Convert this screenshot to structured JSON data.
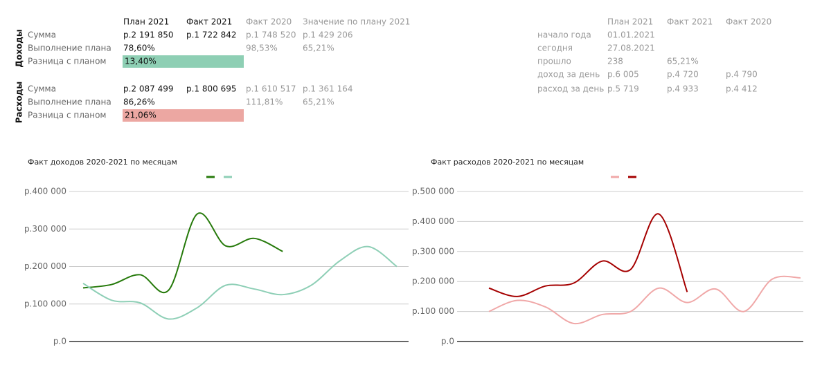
{
  "summary_table": {
    "header": [
      "План 2021",
      "Факт 2021",
      "Факт 2020",
      "Значение по плану 2021"
    ],
    "groups": [
      {
        "title": "Доходы",
        "highlight": "#8ecfb4",
        "rows": [
          {
            "label": "Сумма",
            "cells": [
              "р.2 191 850",
              "р.1 722 842",
              "р.1 748 520",
              "р.1 429 206"
            ]
          },
          {
            "label": "Выполнение плана",
            "cells": [
              "78,60%",
              null,
              "98,53%",
              "65,21%"
            ]
          },
          {
            "label": "Разница с планом",
            "cells": [
              "13,40%"
            ],
            "highlighted": true
          }
        ]
      },
      {
        "title": "Расходы",
        "highlight": "#eca7a2",
        "rows": [
          {
            "label": "Сумма",
            "cells": [
              "р.2 087 499",
              "р.1 800 695",
              "р.1 610 517",
              "р.1 361 164"
            ]
          },
          {
            "label": "Выполнение плана",
            "cells": [
              "86,26%",
              null,
              "111,81%",
              "65,21%"
            ]
          },
          {
            "label": "Разница с планом",
            "cells": [
              "21,06%"
            ],
            "highlighted": true
          }
        ]
      }
    ]
  },
  "period_table": {
    "header": [
      "План 2021",
      "Факт 2021",
      "Факт 2020"
    ],
    "rows": [
      {
        "label": "начало года",
        "cells": [
          "01.01.2021",
          null,
          null
        ]
      },
      {
        "label": "сегодня",
        "cells": [
          "27.08.2021",
          null,
          null
        ]
      },
      {
        "label": "прошло",
        "cells": [
          "238",
          "65,21%",
          null
        ]
      },
      {
        "label": "доход за день",
        "cells": [
          "р.6 005",
          "р.4 720",
          "р.4 790"
        ]
      },
      {
        "label": "расход за день",
        "cells": [
          "р.5 719",
          "р.4 933",
          "р.4 412"
        ]
      }
    ]
  },
  "chart_data": [
    {
      "type": "line",
      "title": "Факт доходов 2020-2021 по месяцам",
      "ylim": [
        0,
        400000
      ],
      "yticks": [
        {
          "value": 0,
          "label": "р.0"
        },
        {
          "value": 100000,
          "label": "р.100 000"
        },
        {
          "value": 200000,
          "label": "р.200 000"
        },
        {
          "value": 300000,
          "label": "р.300 000"
        },
        {
          "value": 400000,
          "label": "р.400 000"
        }
      ],
      "grid": true,
      "series": [
        {
          "color": "#267a0b",
          "values": [
            143000,
            152000,
            178000,
            137000,
            340000,
            255000,
            275000,
            240000,
            null,
            null,
            null,
            null
          ]
        },
        {
          "color": "#8ecfb6",
          "values": [
            155000,
            110000,
            103000,
            60000,
            90000,
            150000,
            140000,
            125000,
            150000,
            215000,
            253000,
            200000
          ]
        }
      ]
    },
    {
      "type": "line",
      "title": "Факт расходов 2020-2021 по месяцам",
      "ylim": [
        0,
        500000
      ],
      "yticks": [
        {
          "value": 0,
          "label": "р.0"
        },
        {
          "value": 100000,
          "label": "р.100 000"
        },
        {
          "value": 200000,
          "label": "р.200 000"
        },
        {
          "value": 300000,
          "label": "р.300 000"
        },
        {
          "value": 400000,
          "label": "р.400 000"
        },
        {
          "value": 500000,
          "label": "р.500 000"
        }
      ],
      "grid": true,
      "series": [
        {
          "color": "#f0a8a8",
          "values": [
            100000,
            137000,
            115000,
            60000,
            90000,
            100000,
            178000,
            130000,
            175000,
            100000,
            208000,
            212000
          ]
        },
        {
          "color": "#a50000",
          "values": [
            178000,
            150000,
            185000,
            195000,
            268000,
            240000,
            425000,
            165000,
            null,
            null,
            null,
            null
          ]
        }
      ]
    }
  ]
}
